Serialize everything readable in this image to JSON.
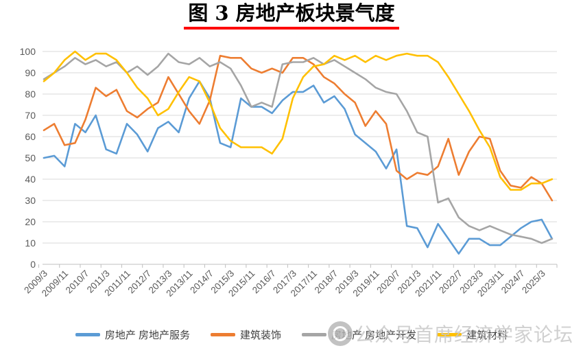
{
  "figure": {
    "title": "图 3  房地产板块景气度",
    "title_underline_color": "#fe0000",
    "watermark": "公众号首席经济学家论坛"
  },
  "chart_data": {
    "type": "line",
    "title": "图 3  房地产板块景气度",
    "xlabel": "",
    "ylabel": "",
    "ylim": [
      0,
      100
    ],
    "y_ticks": [
      0,
      10,
      20,
      30,
      40,
      50,
      60,
      70,
      80,
      90,
      100
    ],
    "grid": true,
    "legend_position": "bottom",
    "x_tick_labels": [
      "2009/3",
      "2009/11",
      "2010/7",
      "2011/3",
      "2011/11",
      "2012/7",
      "2013/3",
      "2013/11",
      "2014/7",
      "2015/3",
      "2015/11",
      "2016/7",
      "2017/3",
      "2017/11",
      "2018/7",
      "2019/3",
      "2019/11",
      "2020/7",
      "2021/3",
      "2021/11",
      "2022/7",
      "2023/3",
      "2023/11",
      "2024/7",
      "2025/3"
    ],
    "x": [
      "2009/3",
      "2009/7",
      "2009/11",
      "2010/3",
      "2010/7",
      "2010/11",
      "2011/3",
      "2011/7",
      "2011/11",
      "2012/3",
      "2012/7",
      "2012/11",
      "2013/3",
      "2013/7",
      "2013/11",
      "2014/3",
      "2014/7",
      "2014/11",
      "2015/3",
      "2015/7",
      "2015/11",
      "2016/3",
      "2016/7",
      "2016/11",
      "2017/3",
      "2017/7",
      "2017/11",
      "2018/3",
      "2018/7",
      "2018/11",
      "2019/3",
      "2019/7",
      "2019/11",
      "2020/3",
      "2020/7",
      "2020/11",
      "2021/3",
      "2021/7",
      "2021/11",
      "2022/3",
      "2022/7",
      "2022/11",
      "2023/3",
      "2023/7",
      "2023/11",
      "2024/3",
      "2024/7",
      "2024/11",
      "2025/3",
      "2025/7"
    ],
    "series": [
      {
        "name": "房地产 房地产服务",
        "color": "#5B9BD5",
        "values": [
          50,
          51,
          46,
          66,
          62,
          70,
          54,
          52,
          66,
          61,
          53,
          64,
          67,
          62,
          78,
          86,
          78,
          57,
          55,
          78,
          74,
          74,
          71,
          77,
          81,
          81,
          84,
          76,
          79,
          73,
          61,
          57,
          53,
          45,
          54,
          18,
          17,
          8,
          19,
          12,
          5,
          12,
          12,
          9,
          9,
          13,
          17,
          20,
          21,
          12
        ]
      },
      {
        "name": "建筑装饰",
        "color": "#ED7D31",
        "values": [
          63,
          66,
          56,
          57,
          68,
          83,
          79,
          82,
          72,
          69,
          73,
          76,
          88,
          80,
          72,
          66,
          77,
          98,
          97,
          97,
          92,
          90,
          92,
          90,
          97,
          97,
          94,
          88,
          85,
          80,
          76,
          65,
          72,
          66,
          44,
          40,
          43,
          42,
          46,
          59,
          42,
          53,
          60,
          59,
          44,
          37,
          36,
          41,
          38,
          30
        ]
      },
      {
        "name": "房地产 房地产开发",
        "color": "#A5A5A5",
        "values": [
          87,
          90,
          93,
          97,
          94,
          96,
          93,
          95,
          90,
          93,
          89,
          93,
          99,
          95,
          94,
          97,
          93,
          95,
          92,
          84,
          74,
          76,
          74,
          94,
          95,
          95,
          97,
          94,
          96,
          93,
          90,
          87,
          83,
          81,
          80,
          72,
          62,
          60,
          29,
          31,
          22,
          18,
          16,
          18,
          16,
          14,
          13,
          12,
          10,
          12
        ]
      },
      {
        "name": "建筑材料",
        "color": "#FFC000",
        "values": [
          86,
          90,
          96,
          100,
          96,
          99,
          99,
          96,
          90,
          83,
          78,
          70,
          73,
          81,
          88,
          86,
          76,
          64,
          58,
          55,
          55,
          55,
          52,
          59,
          78,
          88,
          93,
          94,
          98,
          96,
          98,
          95,
          98,
          96,
          98,
          99,
          98,
          98,
          95,
          88,
          80,
          72,
          63,
          55,
          41,
          35,
          35,
          38,
          38,
          40
        ]
      }
    ],
    "axis_text_color": "#595959",
    "gridline_color": "#d9d9d9",
    "axis_line_color": "#bfbfbf"
  }
}
